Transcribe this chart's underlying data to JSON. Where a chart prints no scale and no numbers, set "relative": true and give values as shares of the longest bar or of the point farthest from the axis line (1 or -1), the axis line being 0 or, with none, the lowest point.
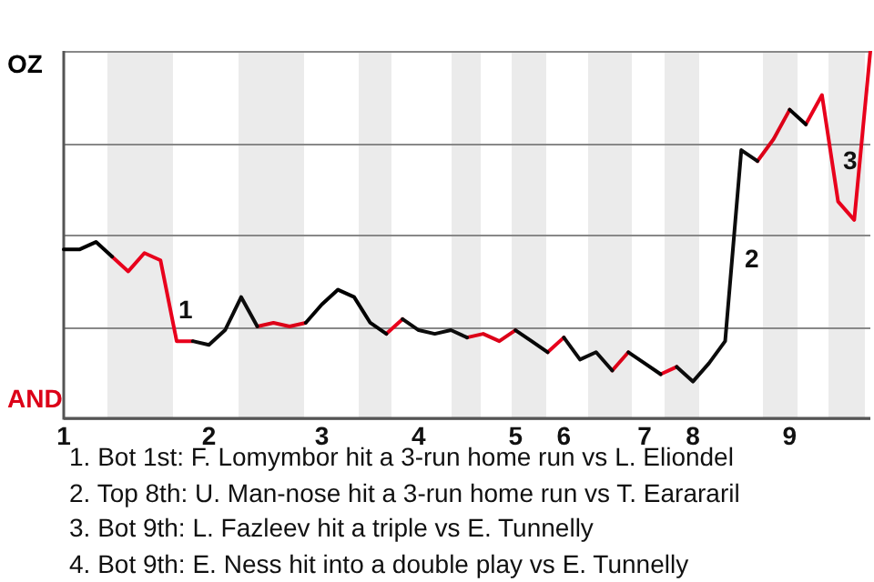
{
  "chart_data": {
    "type": "line",
    "relative": true,
    "categories": [
      "1",
      null,
      null,
      null,
      null,
      null,
      null,
      null,
      null,
      "2",
      null,
      null,
      null,
      null,
      null,
      null,
      "3",
      null,
      null,
      null,
      null,
      null,
      "4",
      null,
      null,
      null,
      null,
      null,
      "5",
      null,
      null,
      "6",
      null,
      null,
      null,
      null,
      "7",
      null,
      null,
      "8",
      null,
      null,
      null,
      null,
      null,
      "9",
      null,
      null,
      null,
      null,
      null
    ],
    "series": [
      {
        "color": "#000000",
        "values": [
          0.46,
          0.46,
          0.48,
          0.44,
          null,
          null,
          null,
          null,
          null,
          null,
          null,
          null,
          null,
          null,
          null,
          0.26,
          0.31,
          0.35,
          0.33,
          0.26,
          0.23,
          null,
          null,
          null,
          null,
          null,
          null,
          null,
          null,
          null,
          null,
          null,
          null,
          null,
          null,
          null,
          null,
          null,
          null,
          null,
          null,
          null,
          null,
          null,
          null,
          0.84,
          0.8,
          null,
          null,
          null,
          null
        ]
      },
      {
        "color": "#0c0c0c",
        "values": [
          null,
          null,
          null,
          null,
          null,
          null,
          null,
          null,
          0.21,
          0.2,
          0.24,
          0.33,
          0.25,
          null,
          null,
          null,
          null,
          null,
          null,
          null,
          null,
          0.27,
          0.24,
          0.23,
          0.24,
          0.22,
          null,
          null,
          null,
          null,
          null,
          0.22,
          0.16,
          0.18,
          0.13,
          null,
          null,
          null,
          0.14,
          0.1,
          0.15,
          0.21,
          0.73,
          0.7,
          null,
          null,
          null,
          null,
          null,
          null,
          null
        ]
      },
      {
        "color": "#060606",
        "values": [
          null,
          null,
          null,
          null,
          null,
          null,
          null,
          null,
          null,
          null,
          null,
          null,
          null,
          null,
          null,
          null,
          null,
          null,
          null,
          null,
          null,
          null,
          null,
          null,
          null,
          null,
          null,
          null,
          0.24,
          0.21,
          0.18,
          null,
          null,
          null,
          null,
          0.18,
          0.15,
          0.12,
          null,
          null,
          null,
          null,
          null,
          null,
          null,
          null,
          null,
          null,
          null,
          null,
          null
        ]
      },
      {
        "color": "#e8001c",
        "values": [
          null,
          null,
          null,
          0.44,
          0.4,
          0.45,
          0.43,
          0.21,
          0.21,
          null,
          null,
          null,
          null,
          null,
          null,
          null,
          null,
          null,
          null,
          null,
          0.23,
          0.27,
          null,
          null,
          null,
          null,
          null,
          null,
          null,
          null,
          0.18,
          0.22,
          null,
          null,
          null,
          null,
          null,
          0.12,
          0.14,
          null,
          null,
          null,
          null,
          null,
          null,
          null,
          0.8,
          0.88,
          0.59,
          0.54,
          1.0
        ]
      },
      {
        "color": "#dc0018",
        "values": [
          null,
          null,
          null,
          null,
          null,
          null,
          null,
          null,
          null,
          null,
          null,
          null,
          0.25,
          0.26,
          0.25,
          0.26,
          null,
          null,
          null,
          null,
          null,
          null,
          null,
          null,
          null,
          0.22,
          0.23,
          0.21,
          0.24,
          null,
          null,
          null,
          null,
          null,
          0.13,
          0.18,
          null,
          null,
          null,
          null,
          null,
          null,
          null,
          0.7,
          0.76,
          0.84,
          null,
          null,
          null,
          null,
          null
        ]
      }
    ],
    "grid": "y",
    "annotations": [
      "OZ",
      "AND",
      "1",
      "2",
      "3",
      "1. Bot 1st: F. Lomymbor hit a 3-run home run vs L. Eliondel",
      "2. Top 8th: U. Man-nose hit a 3-run home run vs T. Earararil",
      "3. Bot 9th: L. Fazleev hit a triple vs E. Tunnelly",
      "4. Bot 9th: E. Ness hit into a double play vs E. Tunnelly"
    ]
  }
}
